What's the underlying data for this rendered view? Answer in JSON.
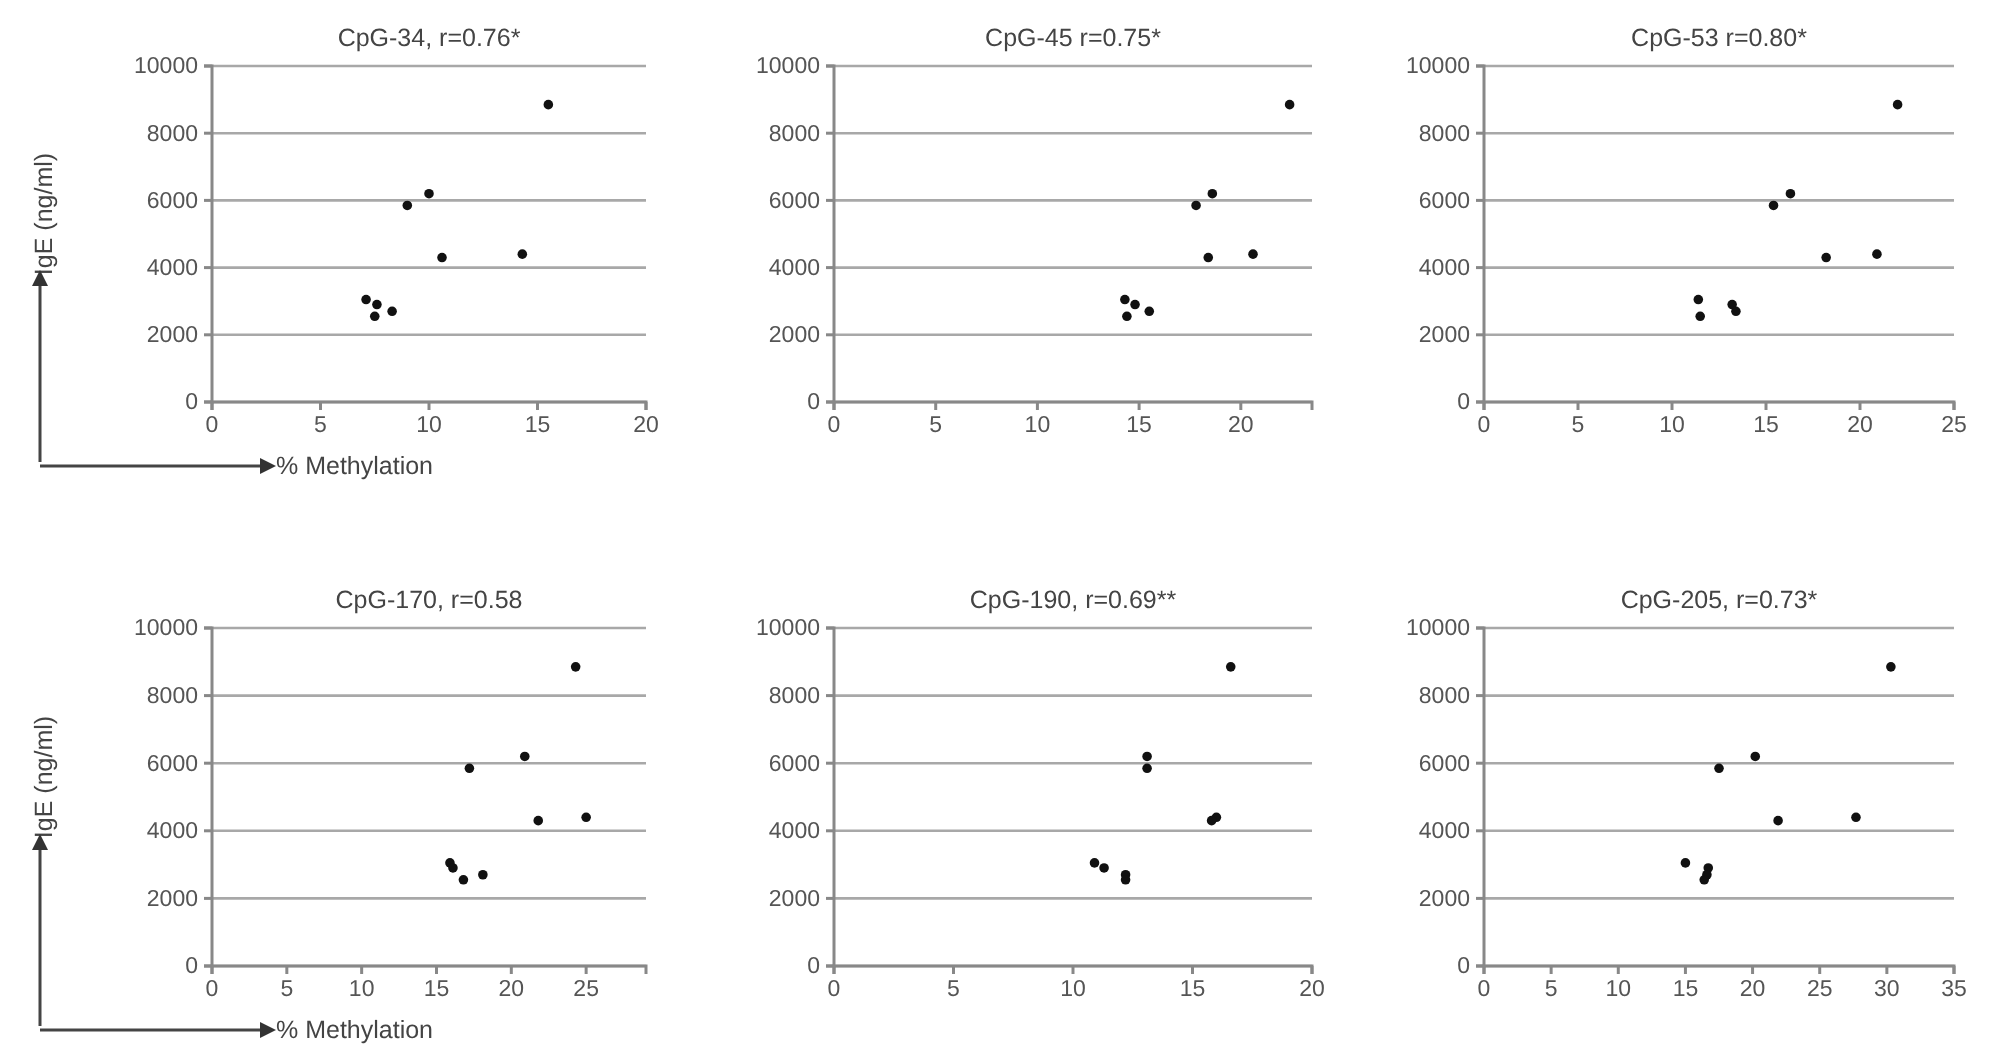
{
  "chart_data": [
    {
      "type": "scatter",
      "title": "CpG-34, r=0.76*",
      "xlabel": "% Methylation",
      "ylabel": "IgE (ng/ml)",
      "color": "#111111",
      "marker": "circle",
      "grid": "y",
      "xlim": [
        0,
        20
      ],
      "xticks": [
        0,
        5,
        10,
        15,
        20
      ],
      "ylim": [
        0,
        10000
      ],
      "yticks": [
        0,
        2000,
        4000,
        6000,
        8000,
        10000
      ],
      "x": [
        15.5,
        10.0,
        9.0,
        14.3,
        10.6,
        7.1,
        7.6,
        8.3,
        7.5
      ],
      "values": [
        8850,
        6200,
        5850,
        4400,
        4300,
        3050,
        2900,
        2700,
        2550
      ]
    },
    {
      "type": "scatter",
      "title": "CpG-45 r=0.75*",
      "color": "#111111",
      "marker": "circle",
      "grid": "y",
      "xlim": [
        0,
        23.5
      ],
      "xticks": [
        0,
        5,
        10,
        15,
        20
      ],
      "ylim": [
        0,
        10000
      ],
      "yticks": [
        0,
        2000,
        4000,
        6000,
        8000,
        10000
      ],
      "x": [
        22.4,
        18.6,
        17.8,
        20.6,
        18.4,
        14.3,
        14.8,
        15.5,
        14.4
      ],
      "values": [
        8850,
        6200,
        5850,
        4400,
        4300,
        3050,
        2900,
        2700,
        2550
      ]
    },
    {
      "type": "scatter",
      "title": "CpG-53 r=0.80*",
      "color": "#111111",
      "marker": "circle",
      "grid": "y",
      "xlim": [
        0,
        25
      ],
      "xticks": [
        0,
        5,
        10,
        15,
        20,
        25
      ],
      "ylim": [
        0,
        10000
      ],
      "yticks": [
        0,
        2000,
        4000,
        6000,
        8000,
        10000
      ],
      "x": [
        22.0,
        16.3,
        15.4,
        20.9,
        18.2,
        11.4,
        13.2,
        13.4,
        11.5
      ],
      "values": [
        8850,
        6200,
        5850,
        4400,
        4300,
        3050,
        2900,
        2700,
        2550
      ]
    },
    {
      "type": "scatter",
      "title": "CpG-170, r=0.58",
      "xlabel": "% Methylation",
      "ylabel": "IgE (ng/ml)",
      "color": "#111111",
      "marker": "circle",
      "grid": "y",
      "xlim": [
        0,
        29
      ],
      "xticks": [
        0,
        5,
        10,
        15,
        20,
        25
      ],
      "ylim": [
        0,
        10000
      ],
      "yticks": [
        0,
        2000,
        4000,
        6000,
        8000,
        10000
      ],
      "x": [
        24.3,
        20.9,
        17.2,
        25.0,
        21.8,
        15.9,
        16.1,
        18.1,
        16.8
      ],
      "values": [
        8850,
        6200,
        5850,
        4400,
        4300,
        3050,
        2900,
        2700,
        2550
      ]
    },
    {
      "type": "scatter",
      "title": "CpG-190, r=0.69**",
      "color": "#111111",
      "marker": "circle",
      "grid": "y",
      "xlim": [
        0,
        20
      ],
      "xticks": [
        0,
        5,
        10,
        15,
        20
      ],
      "ylim": [
        0,
        10000
      ],
      "yticks": [
        0,
        2000,
        4000,
        6000,
        8000,
        10000
      ],
      "x": [
        16.6,
        13.1,
        13.1,
        16.0,
        15.8,
        10.9,
        11.3,
        12.2,
        12.2
      ],
      "values": [
        8850,
        6200,
        5850,
        4400,
        4300,
        3050,
        2900,
        2700,
        2550
      ]
    },
    {
      "type": "scatter",
      "title": "CpG-205, r=0.73*",
      "color": "#111111",
      "marker": "circle",
      "grid": "y",
      "xlim": [
        0,
        35
      ],
      "xticks": [
        0,
        5,
        10,
        15,
        20,
        25,
        30,
        35
      ],
      "ylim": [
        0,
        10000
      ],
      "yticks": [
        0,
        2000,
        4000,
        6000,
        8000,
        10000
      ],
      "x": [
        30.3,
        20.2,
        17.5,
        27.7,
        21.9,
        15.0,
        16.7,
        16.6,
        16.4
      ],
      "values": [
        8850,
        6200,
        5850,
        4400,
        4300,
        3050,
        2900,
        2700,
        2550
      ]
    }
  ]
}
